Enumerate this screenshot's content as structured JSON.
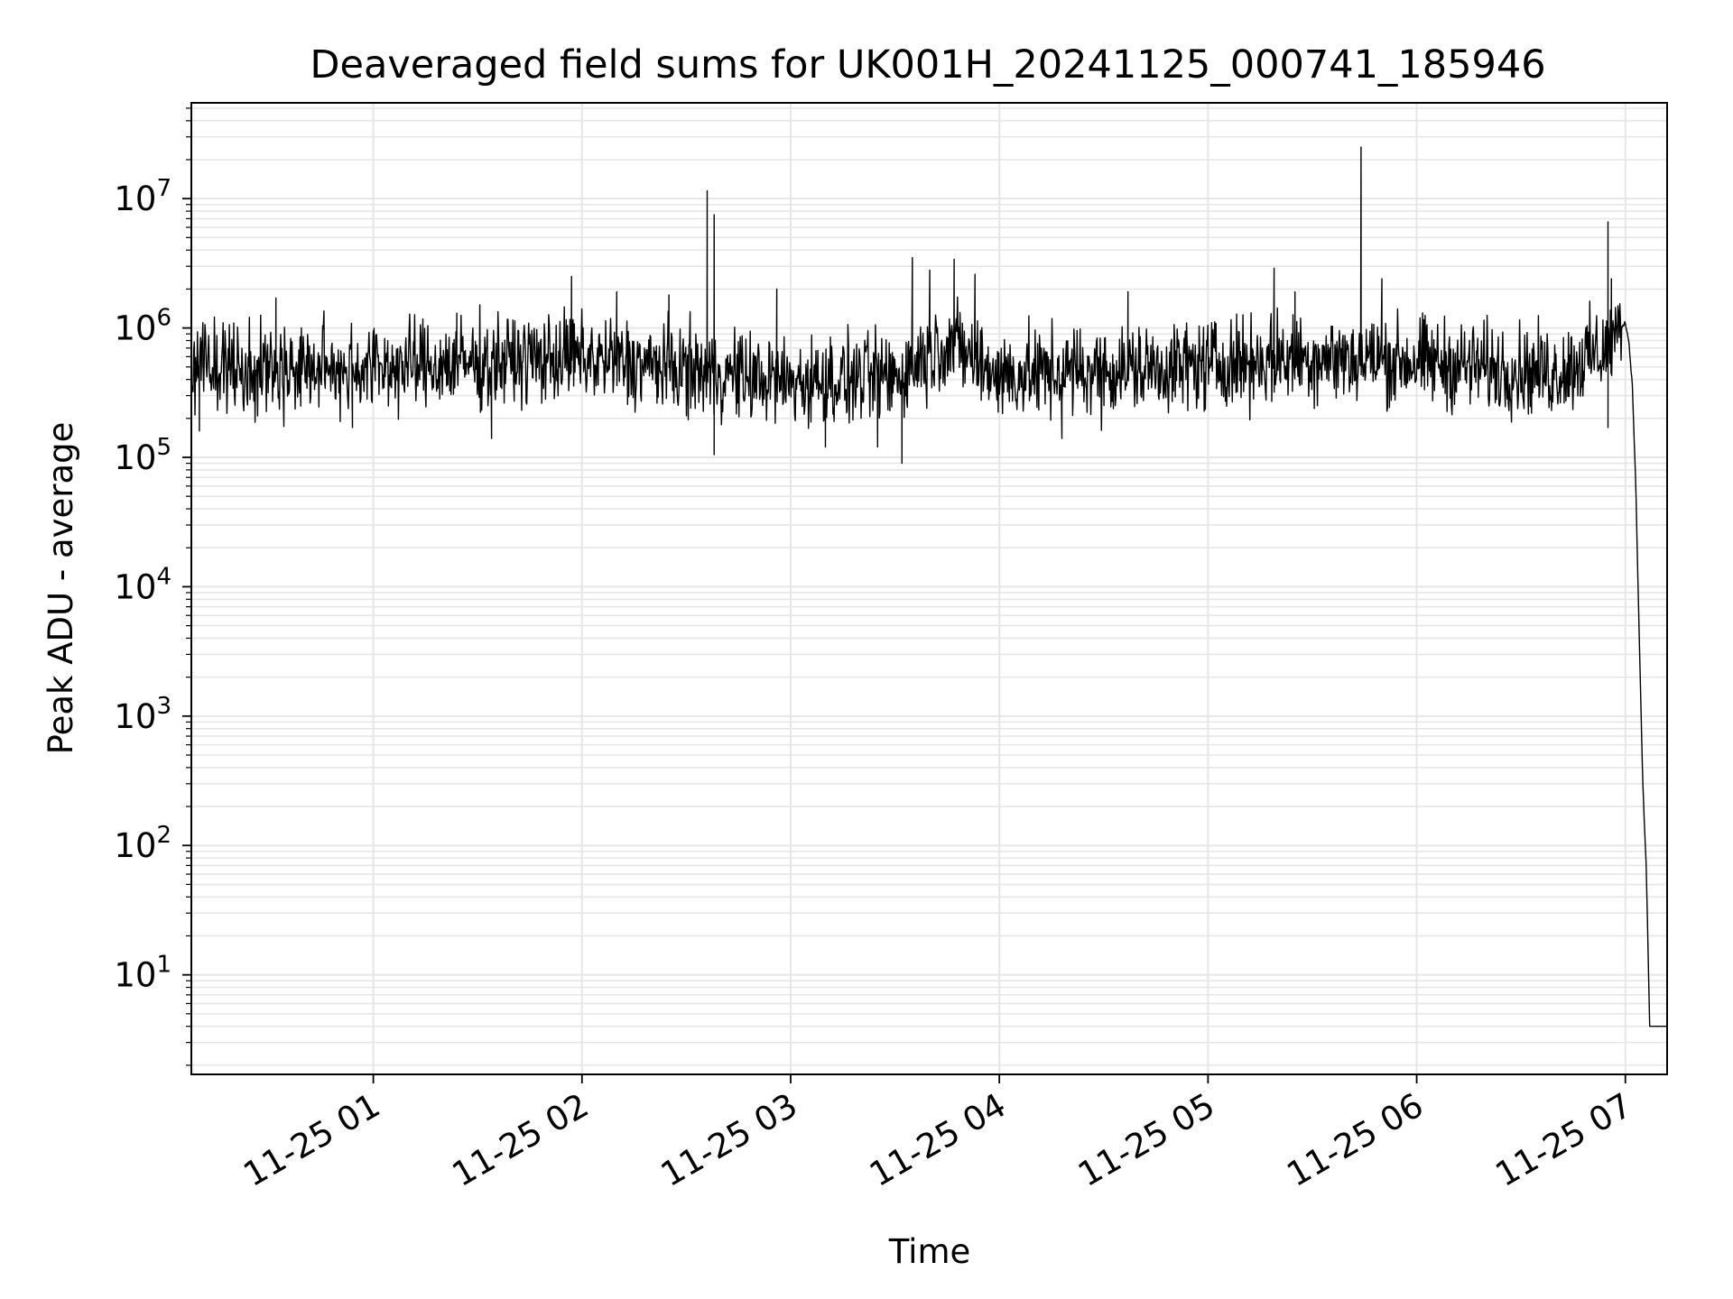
{
  "chart_data": {
    "type": "line",
    "title": "Deaveraged field sums for UK001H_20241125_000741_185946",
    "xlabel": "Time",
    "ylabel": "Peak ADU - average",
    "yscale": "log",
    "grid": true,
    "line_color": "#000000",
    "grid_color": "#e6e6e6",
    "xlim": [
      "2024-11-25 00:07:41",
      "2024-11-25 07:12:00"
    ],
    "ylim": [
      1.7,
      55000000
    ],
    "x_ticks": [
      {
        "value": "2024-11-25 01:00",
        "label": "11-25 01"
      },
      {
        "value": "2024-11-25 02:00",
        "label": "11-25 02"
      },
      {
        "value": "2024-11-25 03:00",
        "label": "11-25 03"
      },
      {
        "value": "2024-11-25 04:00",
        "label": "11-25 04"
      },
      {
        "value": "2024-11-25 05:00",
        "label": "11-25 05"
      },
      {
        "value": "2024-11-25 06:00",
        "label": "11-25 06"
      },
      {
        "value": "2024-11-25 07:00",
        "label": "11-25 07"
      }
    ],
    "y_ticks": [
      {
        "value": 10,
        "base": "10",
        "exp": "1"
      },
      {
        "value": 100,
        "base": "10",
        "exp": "2"
      },
      {
        "value": 1000,
        "base": "10",
        "exp": "3"
      },
      {
        "value": 10000,
        "base": "10",
        "exp": "4"
      },
      {
        "value": 100000,
        "base": "10",
        "exp": "5"
      },
      {
        "value": 1000000,
        "base": "10",
        "exp": "6"
      },
      {
        "value": 10000000,
        "base": "10",
        "exp": "7"
      }
    ],
    "series": [
      {
        "baseline": [
          {
            "x": "2024-11-25 00:08",
            "y": 500000
          },
          {
            "x": "2024-11-25 00:40",
            "y": 480000
          },
          {
            "x": "2024-11-25 01:20",
            "y": 520000
          },
          {
            "x": "2024-11-25 01:55",
            "y": 600000
          },
          {
            "x": "2024-11-25 02:30",
            "y": 480000
          },
          {
            "x": "2024-11-25 03:00",
            "y": 380000
          },
          {
            "x": "2024-11-25 03:30",
            "y": 420000
          },
          {
            "x": "2024-11-25 03:45",
            "y": 800000
          },
          {
            "x": "2024-11-25 04:00",
            "y": 430000
          },
          {
            "x": "2024-11-25 04:40",
            "y": 480000
          },
          {
            "x": "2024-11-25 05:30",
            "y": 600000
          },
          {
            "x": "2024-11-25 06:00",
            "y": 550000
          },
          {
            "x": "2024-11-25 06:40",
            "y": 450000
          },
          {
            "x": "2024-11-25 06:55",
            "y": 700000
          },
          {
            "x": "2024-11-25 07:00",
            "y": 1100000
          },
          {
            "x": "2024-11-25 07:01",
            "y": 800000
          },
          {
            "x": "2024-11-25 07:02",
            "y": 350000
          },
          {
            "x": "2024-11-25 07:03",
            "y": 60000
          },
          {
            "x": "2024-11-25 07:04",
            "y": 4000
          },
          {
            "x": "2024-11-25 07:05",
            "y": 300
          },
          {
            "x": "2024-11-25 07:06",
            "y": 70
          },
          {
            "x": "2024-11-25 07:07",
            "y": 4
          }
        ],
        "tail": [
          {
            "x": "2024-11-25 07:07",
            "y": 4
          },
          {
            "x": "2024-11-25 07:12",
            "y": 4
          }
        ],
        "spikes": [
          {
            "x": "2024-11-25 00:11",
            "y": 1100000
          },
          {
            "x": "2024-11-25 00:32",
            "y": 1700000
          },
          {
            "x": "2024-11-25 01:00",
            "y": 950000
          },
          {
            "x": "2024-11-25 01:24",
            "y": 1300000
          },
          {
            "x": "2024-11-25 01:57",
            "y": 2500000
          },
          {
            "x": "2024-11-25 02:10",
            "y": 1900000
          },
          {
            "x": "2024-11-25 02:25",
            "y": 1800000
          },
          {
            "x": "2024-11-25 02:36",
            "y": 11500000
          },
          {
            "x": "2024-11-25 02:38",
            "y": 7500000
          },
          {
            "x": "2024-11-25 02:56",
            "y": 2000000
          },
          {
            "x": "2024-11-25 03:35",
            "y": 3500000
          },
          {
            "x": "2024-11-25 03:40",
            "y": 2800000
          },
          {
            "x": "2024-11-25 03:47",
            "y": 3400000
          },
          {
            "x": "2024-11-25 03:53",
            "y": 2600000
          },
          {
            "x": "2024-11-25 04:37",
            "y": 1900000
          },
          {
            "x": "2024-11-25 05:19",
            "y": 2900000
          },
          {
            "x": "2024-11-25 05:25",
            "y": 1900000
          },
          {
            "x": "2024-11-25 05:44",
            "y": 25000000
          },
          {
            "x": "2024-11-25 05:50",
            "y": 2400000
          },
          {
            "x": "2024-11-25 06:55",
            "y": 6600000
          },
          {
            "x": "2024-11-25 06:56",
            "y": 2400000
          }
        ],
        "dips": [
          {
            "x": "2024-11-25 00:10",
            "y": 160000
          },
          {
            "x": "2024-11-25 00:54",
            "y": 170000
          },
          {
            "x": "2024-11-25 01:34",
            "y": 140000
          },
          {
            "x": "2024-11-25 02:38",
            "y": 105000
          },
          {
            "x": "2024-11-25 03:10",
            "y": 120000
          },
          {
            "x": "2024-11-25 03:25",
            "y": 120000
          },
          {
            "x": "2024-11-25 03:32",
            "y": 90000
          },
          {
            "x": "2024-11-25 04:18",
            "y": 140000
          },
          {
            "x": "2024-11-25 06:55",
            "y": 170000
          }
        ]
      }
    ]
  }
}
